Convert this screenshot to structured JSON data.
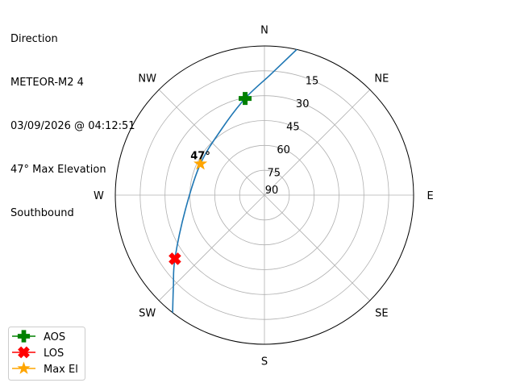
{
  "chart_data": {
    "type": "polar-line",
    "title_lines": [
      "Direction",
      "METEOR-M2 4",
      "03/09/2026 @ 04:12:51",
      "47° Max Elevation",
      "Southbound"
    ],
    "angular_axis": {
      "direction": "clockwise",
      "zero": "N",
      "labels": [
        "N",
        "NE",
        "E",
        "SE",
        "S",
        "SW",
        "W",
        "NW"
      ]
    },
    "radial_axis": {
      "unit": "elevation degrees",
      "range": [
        90,
        0
      ],
      "tick_labels": [
        "15",
        "30",
        "45",
        "60",
        "75",
        "90"
      ],
      "ticks": [
        15,
        30,
        45,
        60,
        75,
        90
      ]
    },
    "grid": true,
    "track": {
      "color": "#1f77b4",
      "points": [
        {
          "az": 12.5,
          "el": 0
        },
        {
          "az": 3,
          "el": 17
        },
        {
          "az": 348.7,
          "el": 30.5
        },
        {
          "az": 327,
          "el": 42.5
        },
        {
          "az": 296,
          "el": 47
        },
        {
          "az": 259.6,
          "el": 41.5
        },
        {
          "az": 234.6,
          "el": 23.7
        },
        {
          "az": 225,
          "el": 12.3
        },
        {
          "az": 218,
          "el": 0
        }
      ]
    },
    "markers": [
      {
        "name": "AOS",
        "az": 348.7,
        "el": 30.5,
        "color": "#008000",
        "shape": "plus"
      },
      {
        "name": "LOS",
        "az": 234.6,
        "el": 23.7,
        "color": "#ff0000",
        "shape": "x"
      },
      {
        "name": "Max El",
        "az": 296,
        "el": 47,
        "color": "#ffa500",
        "shape": "star"
      }
    ],
    "annotation": "47°",
    "legend": {
      "placement": "lower-left",
      "entries": [
        "AOS",
        "LOS",
        "Max El"
      ]
    }
  }
}
